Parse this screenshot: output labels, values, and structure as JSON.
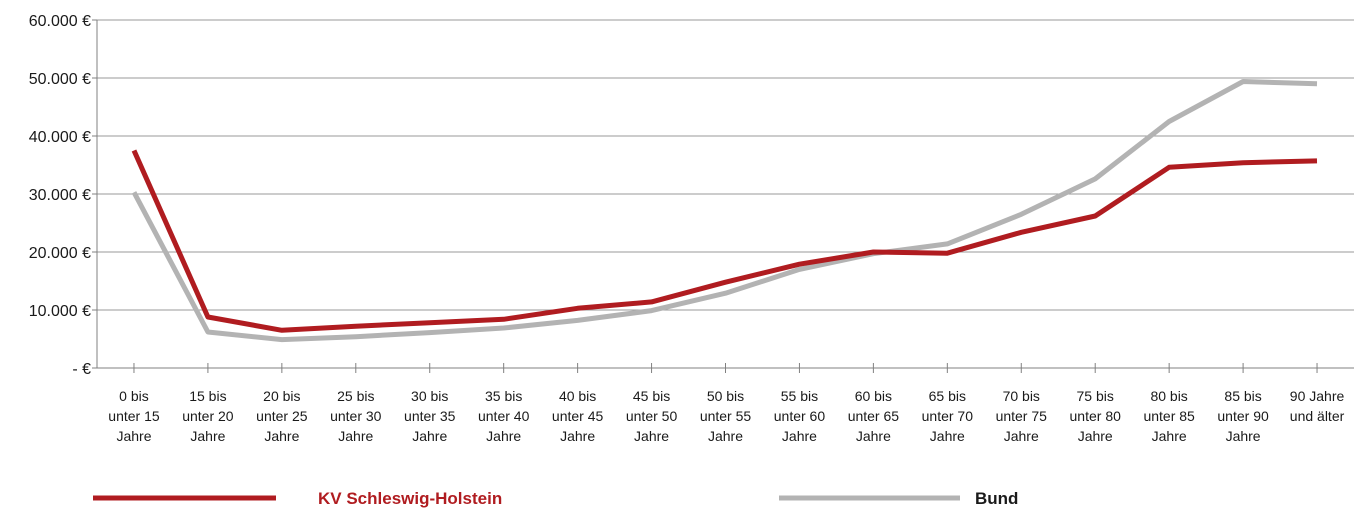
{
  "chart_data": {
    "type": "line",
    "title": "",
    "xlabel": "",
    "ylabel": "",
    "ylim": [
      0,
      60000
    ],
    "yticks": [
      0,
      10000,
      20000,
      30000,
      40000,
      50000,
      60000
    ],
    "ytick_labels": [
      "- €",
      "10.000 €",
      "20.000 €",
      "30.000 €",
      "40.000 €",
      "50.000 €",
      "60.000 €"
    ],
    "grid": true,
    "legend_position": "bottom",
    "categories": [
      [
        "0 bis",
        "unter 15",
        "Jahre"
      ],
      [
        "15 bis",
        "unter 20",
        "Jahre"
      ],
      [
        "20 bis",
        "unter 25",
        "Jahre"
      ],
      [
        "25 bis",
        "unter 30",
        "Jahre"
      ],
      [
        "30 bis",
        "unter 35",
        "Jahre"
      ],
      [
        "35 bis",
        "unter 40",
        "Jahre"
      ],
      [
        "40 bis",
        "unter 45",
        "Jahre"
      ],
      [
        "45 bis",
        "unter 50",
        "Jahre"
      ],
      [
        "50 bis",
        "unter 55",
        "Jahre"
      ],
      [
        "55 bis",
        "unter 60",
        "Jahre"
      ],
      [
        "60 bis",
        "unter 65",
        "Jahre"
      ],
      [
        "65 bis",
        "unter 70",
        "Jahre"
      ],
      [
        "70 bis",
        "unter 75",
        "Jahre"
      ],
      [
        "75 bis",
        "unter 80",
        "Jahre"
      ],
      [
        "80 bis",
        "unter 85",
        "Jahre"
      ],
      [
        "85 bis",
        "unter 90",
        "Jahre"
      ],
      [
        "90 Jahre",
        "und älter"
      ]
    ],
    "series": [
      {
        "name": "KV Schleswig-Holstein",
        "color": "#b01c20",
        "values": [
          37500,
          8800,
          6500,
          7200,
          7800,
          8400,
          10300,
          11400,
          14800,
          17900,
          20000,
          19800,
          23400,
          26200,
          34600,
          35400,
          35700
        ]
      },
      {
        "name": "Bund",
        "color": "#b3b3b3",
        "values": [
          30300,
          6200,
          4900,
          5400,
          6100,
          6900,
          8200,
          9900,
          12900,
          17000,
          19700,
          21400,
          26500,
          32600,
          42500,
          49400,
          49000
        ]
      }
    ]
  }
}
